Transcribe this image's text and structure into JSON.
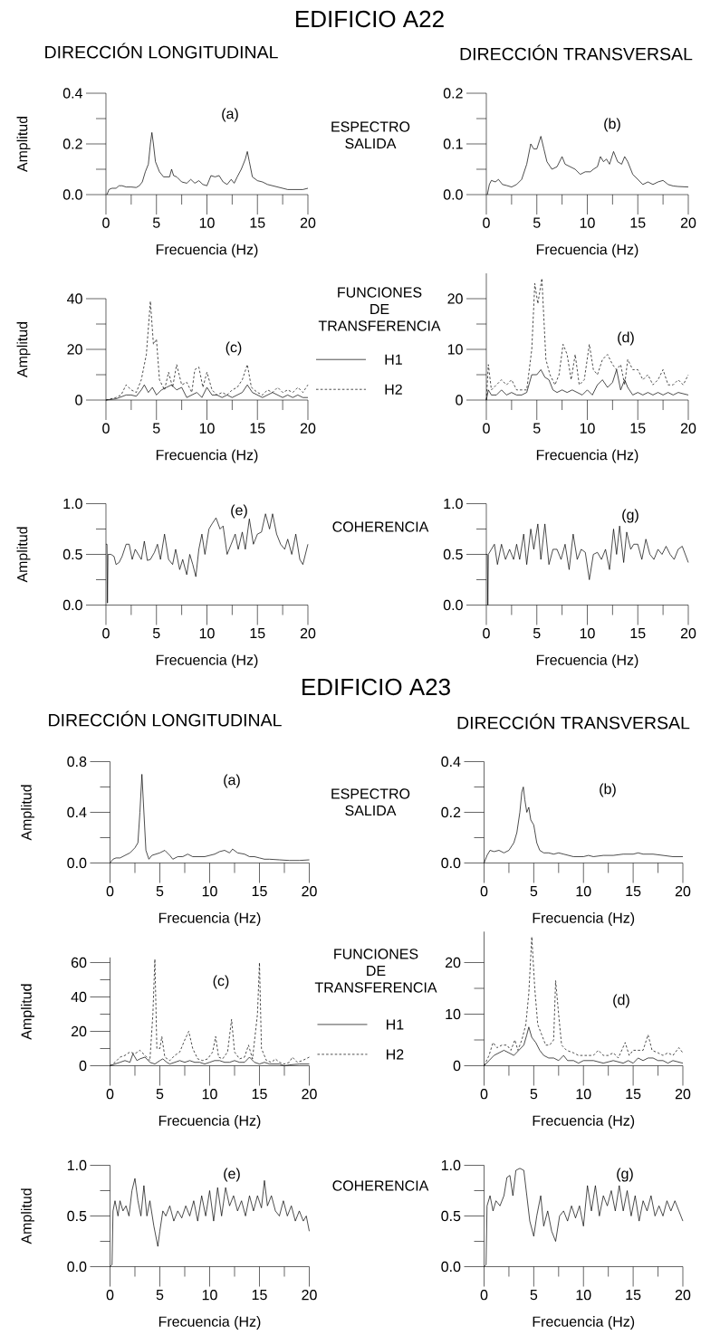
{
  "chart_data": [
    {
      "type": "line",
      "title": "EDIFICIO A22",
      "subtitle": "DIRECCIÓN LONGITUDINAL",
      "xlabel": "Frecuencia (Hz)",
      "ylabel": "Amplitud",
      "annotations": [
        "(a)",
        "ESPECTRO",
        "SALIDA"
      ],
      "xlim": [
        0,
        20
      ],
      "xticks": [
        0,
        {
          "value": 2.5,
          "label": null
        },
        5,
        {
          "value": 7.5,
          "label": null
        },
        10,
        {
          "value": 12.5,
          "label": null
        },
        15,
        {
          "value": 17.5,
          "label": null
        },
        20
      ],
      "ylim": [
        0,
        0.4
      ],
      "yticks": [
        {
          "value": 0,
          "label": "0.0"
        },
        {
          "value": 0.1,
          "label": null
        },
        0.2,
        {
          "value": 0.3,
          "label": null
        },
        0.4
      ],
      "color": "#000000",
      "x": [
        0.1,
        0.3,
        0.6,
        1.0,
        1.3,
        1.6,
        2.0,
        2.5,
        3.0,
        3.3,
        3.6,
        3.9,
        4.2,
        4.4,
        4.55,
        4.7,
        4.9,
        5.3,
        5.7,
        6.0,
        6.3,
        6.5,
        6.7,
        7.0,
        7.5,
        8.0,
        8.4,
        8.8,
        9.2,
        9.6,
        10.0,
        10.4,
        10.8,
        11.2,
        11.6,
        12.0,
        12.4,
        12.7,
        13.0,
        13.4,
        13.8,
        14.0,
        14.2,
        14.5,
        15.0,
        15.5,
        16.0,
        16.5,
        17,
        17.5,
        18,
        18.5,
        19,
        19.5,
        20
      ],
      "values": [
        0,
        0.02,
        0.025,
        0.025,
        0.035,
        0.035,
        0.03,
        0.03,
        0.028,
        0.035,
        0.05,
        0.09,
        0.12,
        0.2,
        0.245,
        0.2,
        0.13,
        0.09,
        0.07,
        0.07,
        0.07,
        0.1,
        0.075,
        0.07,
        0.05,
        0.045,
        0.06,
        0.045,
        0.055,
        0.04,
        0.035,
        0.075,
        0.07,
        0.075,
        0.05,
        0.04,
        0.06,
        0.045,
        0.07,
        0.1,
        0.14,
        0.17,
        0.13,
        0.07,
        0.055,
        0.05,
        0.04,
        0.035,
        0.03,
        0.025,
        0.02,
        0.02,
        0.02,
        0.02,
        0.025
      ]
    },
    {
      "type": "line",
      "subtitle": "DIRECCIÓN TRANSVERSAL",
      "xlabel": "Frecuencia (Hz)",
      "annotations": [
        "(b)"
      ],
      "xlim": [
        0,
        20
      ],
      "xticks": [
        0,
        {
          "value": 2.5,
          "label": null
        },
        5,
        {
          "value": 7.5,
          "label": null
        },
        10,
        {
          "value": 12.5,
          "label": null
        },
        15,
        {
          "value": 17.5,
          "label": null
        },
        20
      ],
      "ylim": [
        0,
        0.2
      ],
      "yticks": [
        {
          "value": 0,
          "label": "0.0"
        },
        {
          "value": 0.05,
          "label": null
        },
        0.1,
        {
          "value": 0.15,
          "label": null
        },
        0.2
      ],
      "color": "#000000",
      "x": [
        0.1,
        0.3,
        0.5,
        0.9,
        1.2,
        1.6,
        2.0,
        2.5,
        3.0,
        3.5,
        4.0,
        4.4,
        4.7,
        5.0,
        5.4,
        5.7,
        6.0,
        6.5,
        7.0,
        7.5,
        7.8,
        8.3,
        8.8,
        9.3,
        9.8,
        10.3,
        10.6,
        11.0,
        11.3,
        11.6,
        11.9,
        12.2,
        12.6,
        13.0,
        13.4,
        13.7,
        14.0,
        14.5,
        15,
        15.5,
        16,
        16.5,
        17,
        17.5,
        18,
        18.5,
        19,
        20
      ],
      "values": [
        0,
        0.02,
        0.028,
        0.025,
        0.03,
        0.02,
        0.018,
        0.015,
        0.02,
        0.03,
        0.06,
        0.1,
        0.09,
        0.09,
        0.115,
        0.09,
        0.065,
        0.05,
        0.055,
        0.075,
        0.06,
        0.055,
        0.05,
        0.04,
        0.045,
        0.045,
        0.05,
        0.055,
        0.075,
        0.065,
        0.07,
        0.06,
        0.085,
        0.065,
        0.06,
        0.075,
        0.065,
        0.04,
        0.03,
        0.02,
        0.025,
        0.02,
        0.025,
        0.028,
        0.02,
        0.017,
        0.016,
        0.015
      ]
    },
    {
      "type": "line",
      "xlabel": "Frecuencia (Hz)",
      "ylabel": "Amplitud",
      "annotations": [
        "(c)",
        "FUNCIONES",
        "DE",
        "TRANSFERENCIA"
      ],
      "legend": "right",
      "xlim": [
        0,
        20
      ],
      "xticks": [
        0,
        {
          "value": 2.5,
          "label": null
        },
        5,
        {
          "value": 7.5,
          "label": null
        },
        10,
        {
          "value": 12.5,
          "label": null
        },
        15,
        {
          "value": 17.5,
          "label": null
        },
        20
      ],
      "ylim": [
        0,
        40
      ],
      "yticks": [
        0,
        {
          "value": 10,
          "label": null
        },
        20,
        {
          "value": 30,
          "label": null
        },
        40
      ],
      "series": [
        {
          "name": "H1",
          "color": "#000000",
          "line_style": "solid",
          "x": [
            0,
            1,
            2,
            2.5,
            3,
            3.5,
            3.8,
            4.2,
            4.6,
            5.0,
            5.5,
            6.0,
            6.5,
            7.0,
            7.5,
            8.0,
            8.5,
            9.0,
            9.5,
            10.0,
            10.5,
            11,
            11.5,
            12,
            12.5,
            13,
            13.5,
            14.0,
            14.5,
            15,
            15.5,
            16,
            16.5,
            17,
            17.5,
            18,
            18.5,
            19,
            19.5,
            20
          ],
          "values": [
            0,
            0.5,
            2,
            2,
            1.5,
            4,
            6,
            3,
            5,
            2,
            4,
            5,
            6,
            4,
            5,
            1,
            2,
            3,
            1,
            5,
            2,
            2,
            1,
            2,
            1,
            2,
            3,
            6,
            3,
            2,
            1,
            2,
            3,
            2,
            1,
            2,
            1,
            2,
            1,
            1
          ]
        },
        {
          "name": "H2",
          "color": "#000000",
          "line_style": "dashed",
          "x": [
            0,
            1,
            1.5,
            2,
            2.5,
            3,
            3.5,
            4.0,
            4.4,
            4.7,
            5.0,
            5.3,
            5.8,
            6.2,
            6.6,
            7.0,
            7.5,
            8.0,
            8.5,
            8.8,
            9.2,
            9.6,
            10.0,
            10.5,
            11,
            11.5,
            12,
            12.5,
            13,
            13.5,
            14.0,
            14.4,
            15,
            15.5,
            16,
            16.5,
            17,
            17.5,
            18,
            18.5,
            19,
            19.5,
            20
          ],
          "values": [
            0,
            1,
            2,
            6,
            4,
            3,
            8,
            18,
            39,
            22,
            24,
            8,
            4,
            11,
            5,
            14,
            6,
            7,
            3,
            12,
            13,
            5,
            11,
            4,
            2,
            3,
            2,
            4,
            5,
            8,
            14,
            5,
            3,
            2,
            4,
            3,
            5,
            3,
            4,
            3,
            5,
            3,
            6
          ]
        }
      ]
    },
    {
      "type": "line",
      "xlabel": "Frecuencia (Hz)",
      "annotations": [
        "(d)"
      ],
      "xlim": [
        0,
        20
      ],
      "xticks": [
        0,
        {
          "value": 2.5,
          "label": null
        },
        5,
        {
          "value": 7.5,
          "label": null
        },
        10,
        {
          "value": 12.5,
          "label": null
        },
        15,
        {
          "value": 17.5,
          "label": null
        },
        20
      ],
      "ylim": [
        0,
        25
      ],
      "yticks": [
        0,
        {
          "value": 5,
          "label": null
        },
        10,
        {
          "value": 15,
          "label": null
        },
        20
      ],
      "series": [
        {
          "color": "#000000",
          "line_style": "solid",
          "x": [
            0,
            0.2,
            0.5,
            1,
            1.5,
            2,
            2.5,
            3,
            3.5,
            4,
            4.5,
            5.0,
            5.4,
            5.8,
            6.2,
            6.6,
            7.0,
            7.5,
            8.0,
            8.5,
            9.0,
            9.5,
            10.0,
            10.5,
            11.0,
            11.5,
            12.0,
            12.5,
            12.9,
            13.3,
            13.7,
            14.0,
            14.5,
            15,
            15.5,
            16,
            16.5,
            17,
            17.5,
            18,
            18.5,
            19,
            20
          ],
          "values": [
            0,
            2,
            1,
            1,
            2,
            1,
            1.5,
            1,
            1,
            1.5,
            5,
            5,
            6,
            4.5,
            4,
            2,
            1.5,
            2,
            1.5,
            2,
            1.5,
            1,
            2,
            1,
            3,
            4,
            2.5,
            3.5,
            6,
            2,
            4,
            2.5,
            1,
            1.5,
            1,
            1.5,
            1,
            1.5,
            1,
            1.5,
            1,
            1.5,
            1
          ]
        },
        {
          "color": "#000000",
          "line_style": "dashed",
          "x": [
            0,
            0.2,
            0.5,
            1.0,
            1.5,
            2,
            2.5,
            3,
            3.5,
            4.0,
            4.5,
            4.8,
            5.1,
            5.5,
            5.9,
            6.3,
            6.8,
            7.2,
            7.6,
            8.0,
            8.4,
            8.8,
            9.2,
            9.7,
            10.2,
            10.6,
            11.0,
            11.5,
            12.0,
            12.5,
            12.9,
            13.3,
            13.7,
            14.0,
            14.5,
            15.0,
            15.5,
            16,
            16.5,
            17,
            17.5,
            18,
            18.5,
            19,
            19.5,
            20
          ],
          "values": [
            0,
            7,
            2,
            3,
            4,
            3,
            4,
            2,
            2,
            2,
            10,
            23,
            19,
            24,
            8,
            5,
            3,
            5,
            11,
            9,
            4,
            9,
            3,
            4,
            11,
            6,
            5,
            8,
            9,
            7,
            6,
            7,
            3,
            8,
            6,
            6,
            4,
            5,
            3,
            4,
            6,
            3,
            3,
            4,
            3,
            5
          ]
        }
      ]
    },
    {
      "type": "line",
      "xlabel": "Frecuencia (Hz)",
      "ylabel": "Amplitud",
      "annotations": [
        "(e)",
        "COHERENCIA"
      ],
      "xlim": [
        0,
        20
      ],
      "xticks": [
        0,
        {
          "value": 2.5,
          "label": null
        },
        5,
        {
          "value": 7.5,
          "label": null
        },
        10,
        {
          "value": 12.5,
          "label": null
        },
        15,
        {
          "value": 17.5,
          "label": null
        },
        20
      ],
      "ylim": [
        0,
        1
      ],
      "yticks": [
        {
          "value": 0,
          "label": "0.0"
        },
        {
          "value": 0.25,
          "label": null
        },
        0.5,
        {
          "value": 0.75,
          "label": null
        },
        {
          "value": 1,
          "label": "1.0"
        }
      ],
      "color": "#000000",
      "x": [
        0,
        0.1,
        0.15,
        0.2,
        0.5,
        0.8,
        1.0,
        1.3,
        1.6,
        2.0,
        2.3,
        2.6,
        2.9,
        3.2,
        3.5,
        3.8,
        4.1,
        4.4,
        4.8,
        5.1,
        5.4,
        5.8,
        6.2,
        6.6,
        6.9,
        7.3,
        7.6,
        8.0,
        8.3,
        8.6,
        8.9,
        9.2,
        9.5,
        9.8,
        10.2,
        10.5,
        10.9,
        11.3,
        11.6,
        12.0,
        12.4,
        12.8,
        13.1,
        13.5,
        13.8,
        14.2,
        14.6,
        15.0,
        15.4,
        15.8,
        16.2,
        16.5,
        16.9,
        17.3,
        17.7,
        18.0,
        18.4,
        18.8,
        19.2,
        19.5,
        20
      ],
      "values": [
        0.6,
        0.6,
        0.02,
        0.5,
        0.5,
        0.48,
        0.4,
        0.42,
        0.48,
        0.6,
        0.6,
        0.45,
        0.55,
        0.5,
        0.45,
        0.63,
        0.44,
        0.45,
        0.52,
        0.6,
        0.45,
        0.7,
        0.45,
        0.4,
        0.55,
        0.35,
        0.45,
        0.3,
        0.5,
        0.4,
        0.28,
        0.55,
        0.7,
        0.5,
        0.75,
        0.8,
        0.86,
        0.75,
        0.78,
        0.5,
        0.6,
        0.7,
        0.55,
        0.72,
        0.55,
        0.85,
        0.6,
        0.7,
        0.72,
        0.9,
        0.75,
        0.9,
        0.7,
        0.6,
        0.55,
        0.65,
        0.5,
        0.7,
        0.45,
        0.4,
        0.6
      ]
    },
    {
      "type": "line",
      "xlabel": "Frecuencia (Hz)",
      "annotations": [
        "(g)"
      ],
      "xlim": [
        0,
        20
      ],
      "xticks": [
        0,
        {
          "value": 2.5,
          "label": null
        },
        5,
        {
          "value": 7.5,
          "label": null
        },
        10,
        {
          "value": 12.5,
          "label": null
        },
        15,
        {
          "value": 17.5,
          "label": null
        },
        20
      ],
      "ylim": [
        0,
        1
      ],
      "yticks": [
        {
          "value": 0,
          "label": "0.0"
        },
        {
          "value": 0.25,
          "label": null
        },
        0.5,
        {
          "value": 0.75,
          "label": null
        },
        {
          "value": 1,
          "label": "1.0"
        }
      ],
      "color": "#000000",
      "x": [
        0,
        0.1,
        0.15,
        0.2,
        0.5,
        0.8,
        1.1,
        1.5,
        1.9,
        2.3,
        2.7,
        3.0,
        3.3,
        3.7,
        4.0,
        4.4,
        4.7,
        5.1,
        5.4,
        5.8,
        6.2,
        6.6,
        7.0,
        7.4,
        7.8,
        8.2,
        8.6,
        9.0,
        9.4,
        9.8,
        10.2,
        10.6,
        11.0,
        11.4,
        11.8,
        12.2,
        12.6,
        12.9,
        13.2,
        13.6,
        13.9,
        14.3,
        14.6,
        15.0,
        15.4,
        15.8,
        16.2,
        16.6,
        17.0,
        17.4,
        17.8,
        18.2,
        18.6,
        19.0,
        19.4,
        19.7,
        20
      ],
      "values": [
        0.5,
        0.5,
        0.0,
        0.5,
        0.55,
        0.6,
        0.4,
        0.6,
        0.45,
        0.55,
        0.45,
        0.6,
        0.45,
        0.7,
        0.4,
        0.75,
        0.55,
        0.8,
        0.45,
        0.8,
        0.4,
        0.55,
        0.55,
        0.45,
        0.6,
        0.35,
        0.7,
        0.45,
        0.55,
        0.52,
        0.25,
        0.5,
        0.52,
        0.45,
        0.55,
        0.35,
        0.75,
        0.5,
        0.78,
        0.42,
        0.72,
        0.55,
        0.6,
        0.6,
        0.45,
        0.65,
        0.5,
        0.45,
        0.55,
        0.5,
        0.58,
        0.5,
        0.45,
        0.55,
        0.58,
        0.5,
        0.42
      ]
    },
    {
      "type": "line",
      "title": "EDIFICIO A23",
      "subtitle": "DIRECCIÓN LONGITUDINAL",
      "xlabel": "Frecuencia (Hz)",
      "ylabel": "Amplitud",
      "annotations": [
        "(a)",
        "ESPECTRO",
        "SALIDA"
      ],
      "xlim": [
        0,
        20
      ],
      "xticks": [
        0,
        {
          "value": 2.5,
          "label": null
        },
        5,
        {
          "value": 7.5,
          "label": null
        },
        10,
        {
          "value": 12.5,
          "label": null
        },
        15,
        {
          "value": 17.5,
          "label": null
        },
        20
      ],
      "ylim": [
        0,
        0.8
      ],
      "yticks": [
        {
          "value": 0,
          "label": "0.0"
        },
        {
          "value": 0.2,
          "label": null
        },
        0.4,
        {
          "value": 0.6,
          "label": null
        },
        0.8
      ],
      "color": "#000000",
      "x": [
        0,
        0.3,
        0.6,
        1,
        1.5,
        2.0,
        2.5,
        2.8,
        3.0,
        3.2,
        3.4,
        3.6,
        3.9,
        4.2,
        4.6,
        5.0,
        5.5,
        6.0,
        6.3,
        6.8,
        7.3,
        7.8,
        8.3,
        9,
        9.5,
        10,
        10.5,
        11,
        11.5,
        12,
        12.3,
        12.8,
        13.5,
        14,
        14.5,
        15,
        15.5,
        16,
        17,
        18,
        19,
        20
      ],
      "values": [
        0,
        0.03,
        0.04,
        0.04,
        0.06,
        0.08,
        0.12,
        0.16,
        0.4,
        0.7,
        0.4,
        0.1,
        0.03,
        0.06,
        0.07,
        0.08,
        0.1,
        0.06,
        0.03,
        0.05,
        0.05,
        0.07,
        0.05,
        0.05,
        0.05,
        0.06,
        0.07,
        0.09,
        0.1,
        0.08,
        0.11,
        0.08,
        0.07,
        0.05,
        0.05,
        0.04,
        0.03,
        0.03,
        0.025,
        0.02,
        0.02,
        0.025
      ]
    },
    {
      "type": "line",
      "subtitle": "DIRECCIÓN TRANSVERSAL",
      "xlabel": "Frecuencia (Hz)",
      "annotations": [
        "(b)"
      ],
      "xlim": [
        0,
        20
      ],
      "xticks": [
        0,
        {
          "value": 2.5,
          "label": null
        },
        5,
        {
          "value": 7.5,
          "label": null
        },
        10,
        {
          "value": 12.5,
          "label": null
        },
        15,
        {
          "value": 17.5,
          "label": null
        },
        20
      ],
      "ylim": [
        0,
        0.4
      ],
      "yticks": [
        {
          "value": 0,
          "label": "0.0"
        },
        {
          "value": 0.1,
          "label": null
        },
        0.2,
        {
          "value": 0.3,
          "label": null
        },
        0.4
      ],
      "color": "#000000",
      "x": [
        0,
        0.3,
        0.6,
        1,
        1.5,
        2,
        2.5,
        3.0,
        3.3,
        3.6,
        3.8,
        3.95,
        4.1,
        4.3,
        4.5,
        4.7,
        5.0,
        5.3,
        5.6,
        6,
        6.5,
        7,
        7.5,
        8,
        8.5,
        9,
        10,
        10.5,
        11,
        12,
        13,
        14,
        15,
        15.5,
        16,
        17,
        18,
        19,
        20
      ],
      "values": [
        0,
        0.03,
        0.05,
        0.045,
        0.05,
        0.04,
        0.05,
        0.08,
        0.12,
        0.2,
        0.28,
        0.3,
        0.25,
        0.2,
        0.22,
        0.17,
        0.15,
        0.08,
        0.05,
        0.04,
        0.04,
        0.035,
        0.04,
        0.035,
        0.03,
        0.025,
        0.025,
        0.03,
        0.025,
        0.03,
        0.03,
        0.035,
        0.035,
        0.04,
        0.035,
        0.035,
        0.03,
        0.025,
        0.025
      ]
    },
    {
      "type": "line",
      "xlabel": "Frecuencia (Hz)",
      "ylabel": "Amplitud",
      "annotations": [
        "(c)",
        "FUNCIONES",
        "DE",
        "TRANSFERENCIA"
      ],
      "legend": "right",
      "xlim": [
        0,
        20
      ],
      "xticks": [
        0,
        {
          "value": 2.5,
          "label": null
        },
        5,
        {
          "value": 7.5,
          "label": null
        },
        10,
        {
          "value": 12.5,
          "label": null
        },
        15,
        {
          "value": 17.5,
          "label": null
        },
        20
      ],
      "ylim": [
        0,
        63
      ],
      "yticks": [
        0,
        {
          "value": 10,
          "label": null
        },
        20,
        {
          "value": 30,
          "label": null
        },
        40,
        {
          "value": 50,
          "label": null
        },
        60
      ],
      "series": [
        {
          "name": "H1",
          "color": "#000000",
          "line_style": "solid",
          "x": [
            0,
            1,
            1.5,
            2,
            2.3,
            2.7,
            3,
            3.5,
            4,
            4.5,
            5.0,
            5.3,
            5.7,
            6,
            6.5,
            7,
            7.5,
            8,
            8.5,
            9,
            9.5,
            10,
            10.5,
            11,
            11.5,
            12,
            12.5,
            13,
            13.5,
            14.0,
            14.5,
            15,
            15.5,
            16,
            17,
            17.5,
            18,
            19,
            20
          ],
          "values": [
            0,
            2,
            3,
            2,
            7,
            3,
            4,
            5,
            2,
            1,
            3,
            4,
            2,
            1,
            2,
            3,
            2,
            3,
            2,
            2,
            1,
            2,
            3,
            3,
            2,
            2,
            3,
            2,
            2,
            5,
            2,
            1,
            2,
            1,
            1,
            0,
            0.5,
            1,
            1
          ]
        },
        {
          "name": "H2",
          "color": "#000000",
          "line_style": "dashed",
          "x": [
            0,
            0.5,
            1,
            1.5,
            2,
            2.5,
            3.0,
            3.5,
            4.0,
            4.3,
            4.5,
            4.7,
            5.0,
            5.2,
            5.5,
            6,
            6.5,
            7.0,
            7.5,
            7.9,
            8.3,
            8.8,
            9.3,
            9.8,
            10.3,
            10.6,
            10.9,
            11.3,
            11.8,
            12.2,
            12.5,
            13,
            13.5,
            13.9,
            14.3,
            14.8,
            15.0,
            15.2,
            15.7,
            16.2,
            16.6,
            17,
            17.5,
            18,
            18.3,
            18.8,
            19.3,
            20
          ],
          "values": [
            0,
            2,
            5,
            6,
            8,
            7,
            9,
            6,
            3,
            30,
            62,
            10,
            10,
            17,
            5,
            3,
            6,
            8,
            15,
            20,
            10,
            4,
            3,
            4,
            8,
            17,
            5,
            4,
            8,
            27,
            8,
            4,
            5,
            12,
            4,
            30,
            60,
            10,
            3,
            2,
            4,
            2,
            1,
            2,
            5,
            2,
            3,
            5
          ]
        }
      ]
    },
    {
      "type": "line",
      "xlabel": "Frecuencia (Hz)",
      "annotations": [
        "(d)"
      ],
      "xlim": [
        0,
        20
      ],
      "xticks": [
        0,
        {
          "value": 2.5,
          "label": null
        },
        5,
        {
          "value": 7.5,
          "label": null
        },
        10,
        {
          "value": 12.5,
          "label": null
        },
        15,
        {
          "value": 17.5,
          "label": null
        },
        20
      ],
      "ylim": [
        0,
        26
      ],
      "yticks": [
        0,
        {
          "value": 5,
          "label": null
        },
        10,
        {
          "value": 15,
          "label": null
        },
        20
      ],
      "series": [
        {
          "color": "#000000",
          "line_style": "solid",
          "x": [
            0,
            0.5,
            1,
            1.5,
            2,
            2.5,
            3,
            3.5,
            4.0,
            4.3,
            4.5,
            4.8,
            5.2,
            5.6,
            6.0,
            6.5,
            7,
            7.5,
            8.0,
            8.4,
            9,
            9.5,
            10,
            11,
            12,
            13,
            14,
            14.5,
            15,
            15.5,
            16,
            16.5,
            17,
            17.5,
            18,
            18.5,
            19,
            20
          ],
          "values": [
            0,
            1,
            2,
            2.5,
            3,
            2.5,
            2,
            3,
            4,
            6,
            7.5,
            5.5,
            4.5,
            3,
            2,
            1.5,
            1.5,
            1,
            2,
            1,
            1,
            0.5,
            1,
            1,
            0.5,
            1,
            0.5,
            1,
            0.5,
            1.5,
            1,
            1.5,
            1.5,
            1,
            1,
            0.5,
            1,
            0.5
          ]
        },
        {
          "color": "#000000",
          "line_style": "dashed",
          "x": [
            0,
            0.5,
            0.9,
            1.3,
            1.8,
            2.3,
            2.7,
            3.1,
            3.4,
            3.8,
            4.2,
            4.5,
            4.8,
            5.1,
            5.4,
            5.8,
            6.2,
            6.6,
            7.0,
            7.2,
            7.5,
            7.8,
            8.3,
            9,
            9.5,
            10,
            10.5,
            11,
            11.5,
            12,
            12.5,
            13,
            13.5,
            14.2,
            14.6,
            15,
            15.5,
            16,
            16.5,
            16.9,
            17.5,
            18,
            18.5,
            19,
            19.6,
            20
          ],
          "values": [
            0,
            2,
            4.5,
            3.5,
            4,
            4,
            3,
            5,
            3,
            5,
            8,
            14,
            25,
            15,
            8,
            6,
            4,
            4,
            5,
            16.5,
            10,
            4,
            3,
            2.5,
            2,
            2,
            2,
            2,
            3,
            2,
            2,
            2.5,
            1.5,
            4.5,
            2,
            3,
            3,
            3,
            6,
            3,
            2.5,
            2,
            2.5,
            2,
            3.5,
            2.5
          ]
        }
      ]
    },
    {
      "type": "line",
      "xlabel": "Frecuencia (Hz)",
      "ylabel": "Amplitud",
      "annotations": [
        "(e)",
        "COHERENCIA"
      ],
      "xlim": [
        0,
        20
      ],
      "xticks": [
        0,
        {
          "value": 2.5,
          "label": null
        },
        5,
        {
          "value": 7.5,
          "label": null
        },
        10,
        {
          "value": 12.5,
          "label": null
        },
        15,
        {
          "value": 17.5,
          "label": null
        },
        20
      ],
      "ylim": [
        0,
        1
      ],
      "yticks": [
        {
          "value": 0,
          "label": "0.0"
        },
        {
          "value": 0.25,
          "label": null
        },
        0.5,
        {
          "value": 0.75,
          "label": null
        },
        {
          "value": 1,
          "label": "1.0"
        }
      ],
      "color": "#000000",
      "x": [
        0,
        0.2,
        0.3,
        0.5,
        0.8,
        1.0,
        1.3,
        1.6,
        1.9,
        2.2,
        2.5,
        2.8,
        3.1,
        3.4,
        3.7,
        4.0,
        4.4,
        4.8,
        5.0,
        5.3,
        5.6,
        6.0,
        6.4,
        6.8,
        7.2,
        7.6,
        8.0,
        8.4,
        8.8,
        9.2,
        9.6,
        10.0,
        10.4,
        10.8,
        11.2,
        11.6,
        12.0,
        12.4,
        12.8,
        13.2,
        13.6,
        14.0,
        14.4,
        14.8,
        15.2,
        15.5,
        15.8,
        16.2,
        16.6,
        17.0,
        17.4,
        17.8,
        18.2,
        18.6,
        19.0,
        19.4,
        19.7,
        20
      ],
      "values": [
        0,
        0.02,
        0.55,
        0.65,
        0.5,
        0.65,
        0.55,
        0.6,
        0.5,
        0.75,
        0.87,
        0.65,
        0.5,
        0.8,
        0.5,
        0.65,
        0.4,
        0.2,
        0.35,
        0.55,
        0.5,
        0.6,
        0.45,
        0.55,
        0.48,
        0.6,
        0.5,
        0.65,
        0.45,
        0.7,
        0.5,
        0.75,
        0.45,
        0.78,
        0.5,
        0.78,
        0.6,
        0.7,
        0.55,
        0.65,
        0.5,
        0.7,
        0.55,
        0.7,
        0.58,
        0.85,
        0.6,
        0.7,
        0.55,
        0.5,
        0.65,
        0.5,
        0.6,
        0.45,
        0.55,
        0.45,
        0.5,
        0.35
      ]
    },
    {
      "type": "line",
      "xlabel": "Frecuencia (Hz)",
      "annotations": [
        "(g)"
      ],
      "xlim": [
        0,
        20
      ],
      "xticks": [
        0,
        {
          "value": 2.5,
          "label": null
        },
        5,
        {
          "value": 7.5,
          "label": null
        },
        10,
        {
          "value": 12.5,
          "label": null
        },
        15,
        {
          "value": 17.5,
          "label": null
        },
        20
      ],
      "ylim": [
        0,
        1
      ],
      "yticks": [
        {
          "value": 0,
          "label": "0.0"
        },
        {
          "value": 0.25,
          "label": null
        },
        0.5,
        {
          "value": 0.75,
          "label": null
        },
        {
          "value": 1,
          "label": "1.0"
        }
      ],
      "color": "#000000",
      "x": [
        0,
        0.2,
        0.3,
        0.6,
        0.9,
        1.2,
        1.6,
        2.0,
        2.3,
        2.6,
        2.9,
        3.2,
        3.6,
        4.0,
        4.3,
        4.6,
        5.0,
        5.3,
        5.7,
        6.0,
        6.4,
        6.8,
        7.2,
        7.6,
        8.0,
        8.4,
        8.8,
        9.2,
        9.6,
        10.0,
        10.4,
        10.8,
        11.2,
        11.6,
        12.0,
        12.4,
        12.8,
        13.2,
        13.6,
        14.0,
        14.4,
        14.8,
        15.2,
        15.6,
        16.0,
        16.4,
        16.8,
        17.2,
        17.6,
        18.0,
        18.4,
        18.8,
        19.2,
        19.6,
        20
      ],
      "values": [
        0,
        0.02,
        0.6,
        0.7,
        0.55,
        0.65,
        0.6,
        0.7,
        0.88,
        0.9,
        0.7,
        0.95,
        0.97,
        0.95,
        0.7,
        0.45,
        0.3,
        0.5,
        0.7,
        0.4,
        0.55,
        0.35,
        0.25,
        0.5,
        0.55,
        0.45,
        0.6,
        0.48,
        0.6,
        0.4,
        0.8,
        0.55,
        0.8,
        0.5,
        0.7,
        0.6,
        0.75,
        0.55,
        0.8,
        0.55,
        0.75,
        0.5,
        0.7,
        0.45,
        0.65,
        0.55,
        0.7,
        0.5,
        0.6,
        0.5,
        0.65,
        0.55,
        0.65,
        0.55,
        0.45
      ]
    }
  ]
}
